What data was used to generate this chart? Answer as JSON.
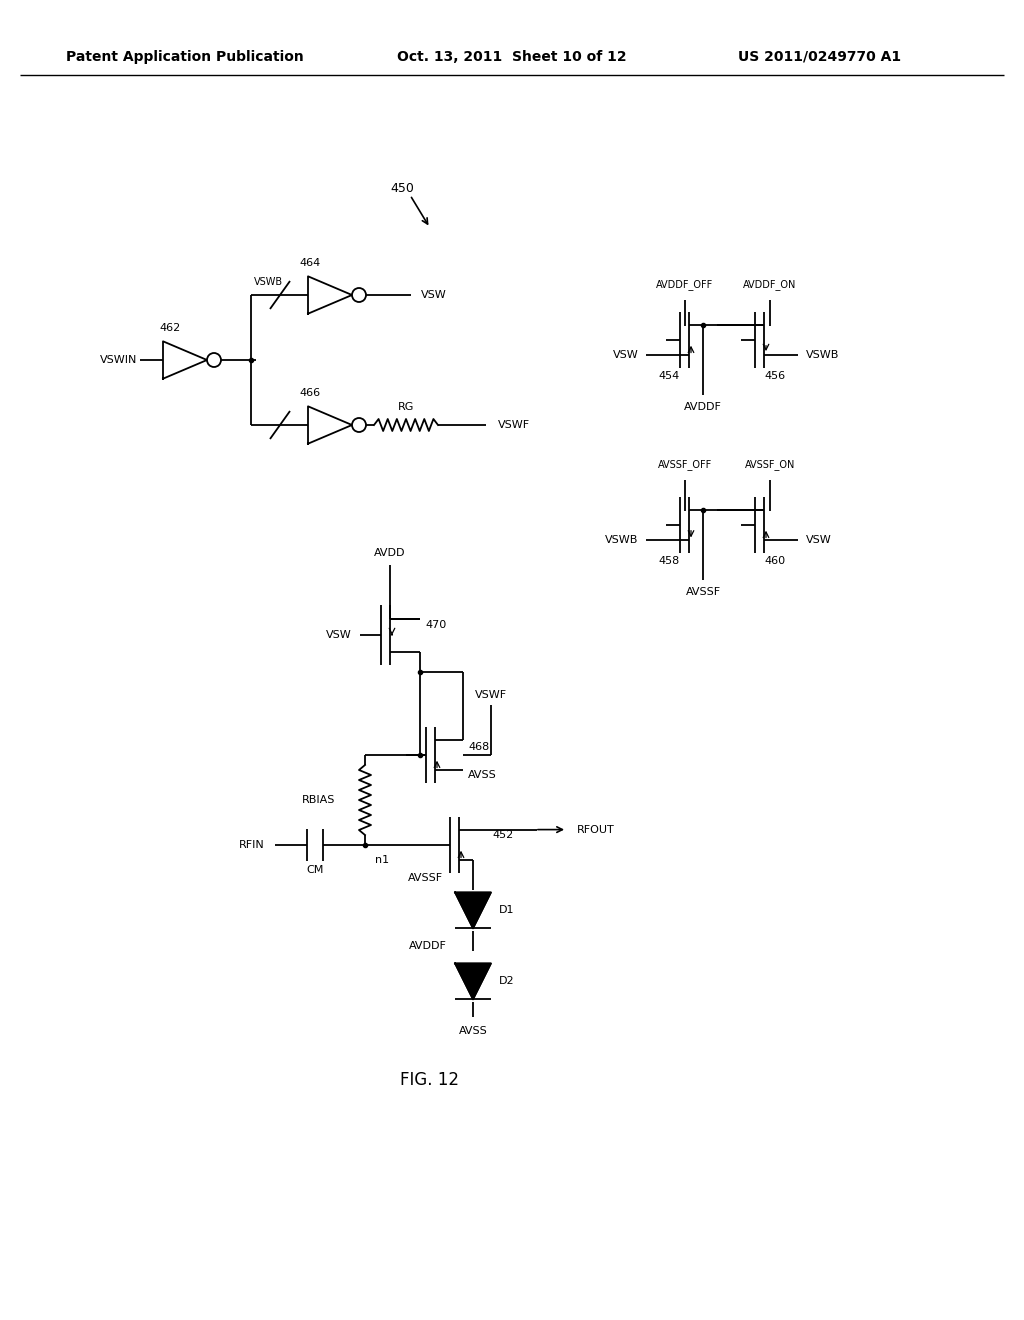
{
  "header_left": "Patent Application Publication",
  "header_mid": "Oct. 13, 2011  Sheet 10 of 12",
  "header_right": "US 2011/0249770 A1",
  "background": "#ffffff",
  "line_color": "#000000",
  "fig_label": "FIG. 12"
}
